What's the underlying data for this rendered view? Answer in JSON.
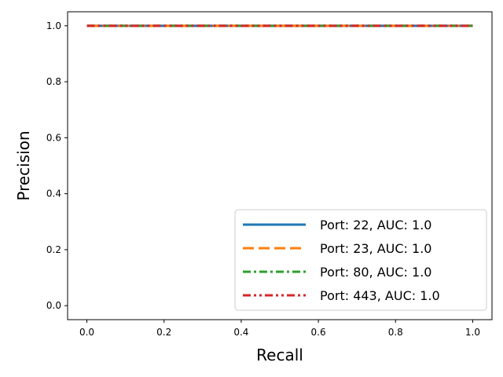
{
  "chart_data": {
    "type": "line",
    "title": "",
    "xlabel": "Recall",
    "ylabel": "Precision",
    "xlim": [
      -0.05,
      1.05
    ],
    "ylim": [
      -0.05,
      1.05
    ],
    "xticks": [
      0.0,
      0.2,
      0.4,
      0.6,
      0.8,
      1.0
    ],
    "xtick_labels": [
      "0.0",
      "0.2",
      "0.4",
      "0.6",
      "0.8",
      "1.0"
    ],
    "yticks": [
      0.0,
      0.2,
      0.4,
      0.6,
      0.8,
      1.0
    ],
    "ytick_labels": [
      "0.0",
      "0.2",
      "0.4",
      "0.6",
      "0.8",
      "1.0"
    ],
    "grid": false,
    "legend_position": "lower-right",
    "series": [
      {
        "name": "Port: 22, AUC: 1.0",
        "style": "solid",
        "color": "#1f77b4",
        "x": [
          0.0,
          1.0
        ],
        "y": [
          1.0,
          1.0
        ]
      },
      {
        "name": "Port: 23, AUC: 1.0",
        "style": "dashed",
        "color": "#ff7f0e",
        "x": [
          0.0,
          1.0
        ],
        "y": [
          1.0,
          1.0
        ]
      },
      {
        "name": "Port: 80, AUC: 1.0",
        "style": "dashdot",
        "color": "#2ca02c",
        "x": [
          0.0,
          1.0
        ],
        "y": [
          1.0,
          1.0
        ]
      },
      {
        "name": "Port: 443, AUC: 1.0",
        "style": "dashdotdot",
        "color": "#d62728",
        "x": [
          0.0,
          1.0
        ],
        "y": [
          1.0,
          1.0
        ]
      }
    ]
  }
}
